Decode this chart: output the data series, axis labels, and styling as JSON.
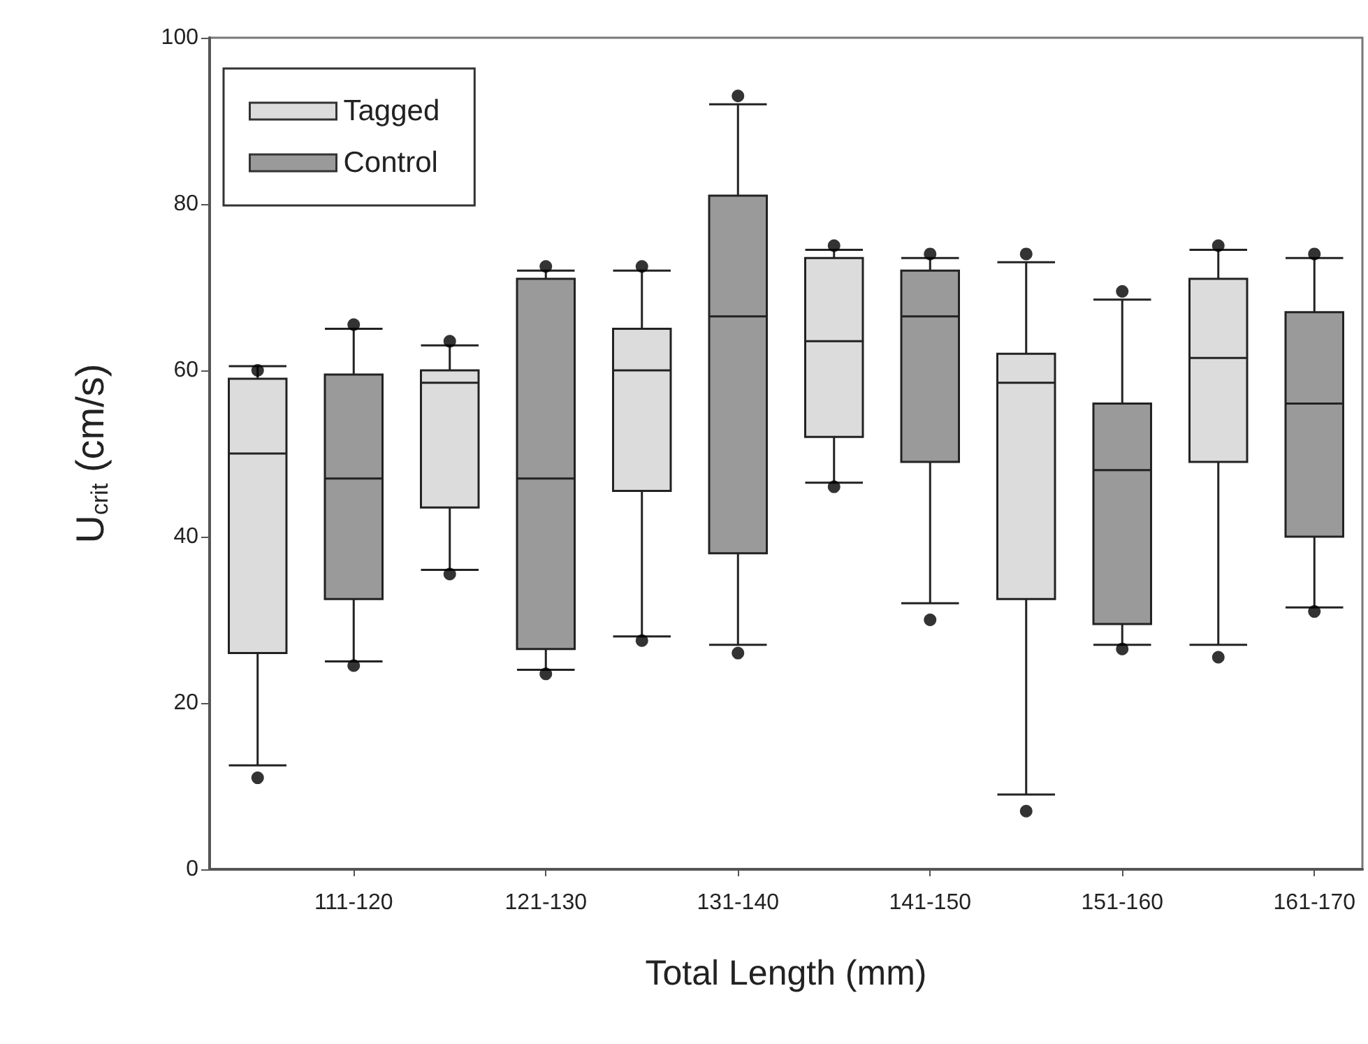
{
  "chart_data": {
    "type": "box",
    "xlabel": "Total Length (mm)",
    "ylabel": "U$_{crit}$ (cm/s)",
    "categories": [
      null,
      "111-120",
      null,
      "121-130",
      null,
      "131-140",
      null,
      "141-150",
      null,
      "151-160",
      null,
      "161-170"
    ],
    "ylim": [
      0,
      100
    ],
    "yticks": [
      0,
      20,
      40,
      60,
      80,
      100
    ],
    "grid": false,
    "legend": "top left",
    "marker": "circle",
    "series": [
      {
        "name": "Tagged",
        "color": "#dcdcdc",
        "boxes": [
          {
            "low": 12.5,
            "q1": 26,
            "median": 50,
            "q3": 59,
            "high": 60.5,
            "outliers": [
              60,
              11
            ]
          },
          null,
          {
            "low": 36,
            "q1": 43.5,
            "median": 58.5,
            "q3": 60,
            "high": 63,
            "outliers": [
              63.5,
              35.5
            ]
          },
          null,
          {
            "low": 28,
            "q1": 45.5,
            "median": 60,
            "q3": 65,
            "high": 72,
            "outliers": [
              72.5,
              27.5
            ]
          },
          null,
          {
            "low": 46.5,
            "q1": 52,
            "median": 63.5,
            "q3": 73.5,
            "high": 74.5,
            "outliers": [
              75,
              46
            ]
          },
          null,
          {
            "low": 9,
            "q1": 32.5,
            "median": 58.5,
            "q3": 62,
            "high": 73,
            "outliers": [
              74,
              7
            ]
          },
          null,
          {
            "low": 27,
            "q1": 49,
            "median": 61.5,
            "q3": 71,
            "high": 74.5,
            "outliers": [
              75,
              25.5
            ]
          },
          null
        ]
      },
      {
        "name": "Control",
        "color": "#9a9a9a",
        "boxes": [
          null,
          {
            "low": 25,
            "q1": 32.5,
            "median": 47,
            "q3": 59.5,
            "high": 65,
            "outliers": [
              65.5,
              24.5
            ]
          },
          null,
          {
            "low": 24,
            "q1": 26.5,
            "median": 47,
            "q3": 71,
            "high": 72,
            "outliers": [
              72.5,
              23.5
            ]
          },
          null,
          {
            "low": 27,
            "q1": 38,
            "median": 66.5,
            "q3": 81,
            "high": 92,
            "outliers": [
              93,
              26
            ]
          },
          null,
          {
            "low": 32,
            "q1": 49,
            "median": 66.5,
            "q3": 72,
            "high": 73.5,
            "outliers": [
              74,
              30
            ]
          },
          null,
          {
            "low": 27,
            "q1": 29.5,
            "median": 48,
            "q3": 56,
            "high": 68.5,
            "outliers": [
              69.5,
              26.5
            ]
          },
          null,
          {
            "low": 31.5,
            "q1": 40,
            "median": 56,
            "q3": 67,
            "high": 73.5,
            "outliers": [
              74,
              31
            ]
          }
        ]
      }
    ]
  }
}
